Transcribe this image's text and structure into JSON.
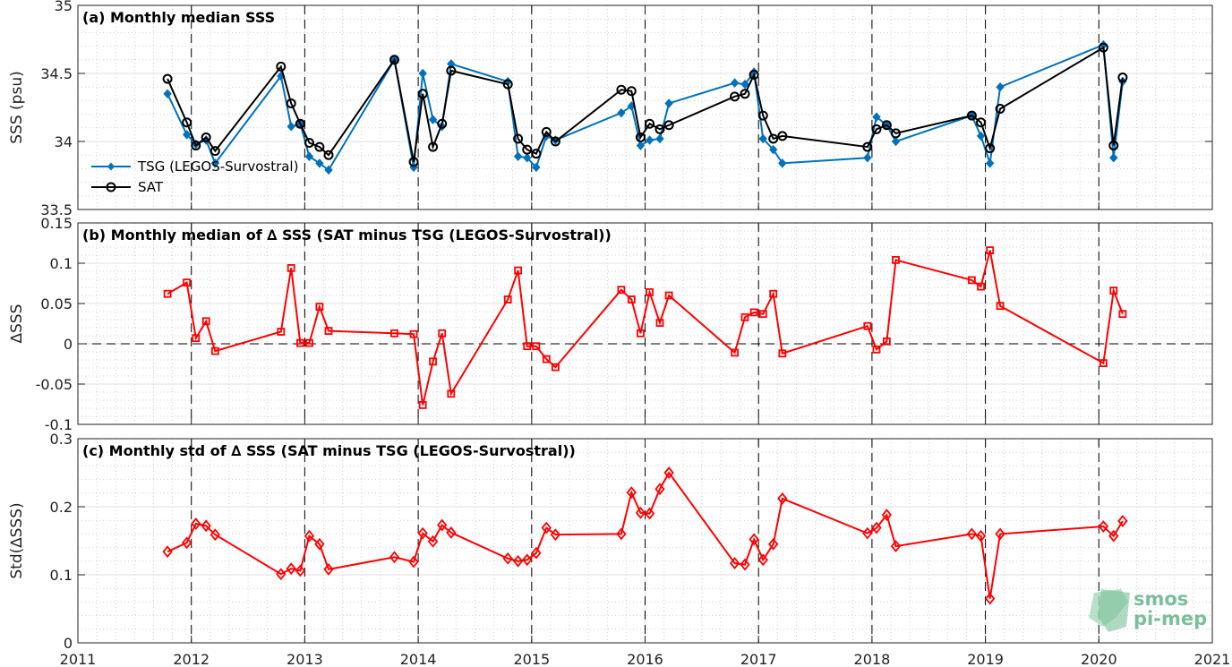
{
  "chart_data": [
    {
      "type": "line",
      "title": "(a) Monthly median SSS",
      "ylabel": "SSS (psu)",
      "ylim": [
        33.5,
        35
      ],
      "yticks": [
        "33.5",
        "34",
        "34.5",
        "35"
      ],
      "xlim": [
        2011,
        2021
      ],
      "xticks": [
        "2011",
        "2012",
        "2013",
        "2014",
        "2015",
        "2016",
        "2017",
        "2018",
        "2019",
        "2020",
        "2021"
      ],
      "grid": true,
      "legend_position": "bottom-left",
      "series": [
        {
          "name": "TSG (LEGOS-Survostral)",
          "color": "#0072bd",
          "marker": "diamond",
          "points": [
            [
              2011.79,
              34.35
            ],
            [
              2011.96,
              34.05
            ],
            [
              2012.04,
              33.98
            ],
            [
              2012.13,
              34.01
            ],
            [
              2012.21,
              33.84
            ],
            [
              2012.79,
              34.48
            ],
            [
              2012.88,
              34.11
            ],
            [
              2012.96,
              34.13
            ],
            [
              2013.04,
              33.89
            ],
            [
              2013.13,
              33.84
            ],
            [
              2013.21,
              33.79
            ],
            [
              2013.79,
              34.6
            ],
            [
              2013.96,
              33.81
            ],
            [
              2014.04,
              34.5
            ],
            [
              2014.13,
              34.16
            ],
            [
              2014.21,
              34.11
            ],
            [
              2014.29,
              34.57
            ],
            [
              2014.79,
              34.44
            ],
            [
              2014.88,
              33.89
            ],
            [
              2014.96,
              33.88
            ],
            [
              2015.04,
              33.81
            ],
            [
              2015.13,
              34.04
            ],
            [
              2015.21,
              34.01
            ],
            [
              2015.79,
              34.21
            ],
            [
              2015.88,
              34.26
            ],
            [
              2015.96,
              33.97
            ],
            [
              2016.04,
              34.01
            ],
            [
              2016.13,
              34.02
            ],
            [
              2016.21,
              34.28
            ],
            [
              2016.79,
              34.43
            ],
            [
              2016.88,
              34.42
            ],
            [
              2016.96,
              34.51
            ],
            [
              2017.04,
              34.02
            ],
            [
              2017.13,
              33.94
            ],
            [
              2017.21,
              33.84
            ],
            [
              2017.96,
              33.88
            ],
            [
              2018.04,
              34.18
            ],
            [
              2018.13,
              34.12
            ],
            [
              2018.21,
              34.0
            ],
            [
              2018.88,
              34.19
            ],
            [
              2018.96,
              34.04
            ],
            [
              2019.04,
              33.84
            ],
            [
              2019.13,
              34.4
            ],
            [
              2020.04,
              34.71
            ],
            [
              2020.13,
              33.88
            ],
            [
              2020.21,
              34.44
            ]
          ]
        },
        {
          "name": "SAT",
          "color": "#000000",
          "marker": "circle",
          "points": [
            [
              2011.79,
              34.46
            ],
            [
              2011.96,
              34.14
            ],
            [
              2012.04,
              33.97
            ],
            [
              2012.13,
              34.03
            ],
            [
              2012.21,
              33.93
            ],
            [
              2012.79,
              34.55
            ],
            [
              2012.88,
              34.28
            ],
            [
              2012.96,
              34.13
            ],
            [
              2013.04,
              33.99
            ],
            [
              2013.13,
              33.96
            ],
            [
              2013.21,
              33.9
            ],
            [
              2013.79,
              34.6
            ],
            [
              2013.96,
              33.85
            ],
            [
              2014.04,
              34.35
            ],
            [
              2014.13,
              33.96
            ],
            [
              2014.21,
              34.13
            ],
            [
              2014.29,
              34.52
            ],
            [
              2014.79,
              34.42
            ],
            [
              2014.88,
              34.02
            ],
            [
              2014.96,
              33.94
            ],
            [
              2015.04,
              33.91
            ],
            [
              2015.13,
              34.07
            ],
            [
              2015.21,
              34.0
            ],
            [
              2015.79,
              34.38
            ],
            [
              2015.88,
              34.37
            ],
            [
              2015.96,
              34.03
            ],
            [
              2016.04,
              34.13
            ],
            [
              2016.13,
              34.09
            ],
            [
              2016.21,
              34.12
            ],
            [
              2016.79,
              34.33
            ],
            [
              2016.88,
              34.35
            ],
            [
              2016.96,
              34.49
            ],
            [
              2017.04,
              34.19
            ],
            [
              2017.13,
              34.02
            ],
            [
              2017.21,
              34.04
            ],
            [
              2017.96,
              33.96
            ],
            [
              2018.04,
              34.09
            ],
            [
              2018.13,
              34.12
            ],
            [
              2018.21,
              34.06
            ],
            [
              2018.88,
              34.19
            ],
            [
              2018.96,
              34.14
            ],
            [
              2019.04,
              33.95
            ],
            [
              2019.13,
              34.24
            ],
            [
              2020.04,
              34.69
            ],
            [
              2020.13,
              33.97
            ],
            [
              2020.21,
              34.47
            ]
          ]
        }
      ]
    },
    {
      "type": "line",
      "title": "(b) Monthly median of ∆ SSS (SAT minus TSG (LEGOS-Survostral))",
      "ylabel": "∆SSS",
      "ylim": [
        -0.1,
        0.15
      ],
      "yticks": [
        "-0.1",
        "-0.05",
        "0",
        "0.05",
        "0.1",
        "0.15"
      ],
      "xlim": [
        2011,
        2021
      ],
      "xticks": [
        "2011",
        "2012",
        "2013",
        "2014",
        "2015",
        "2016",
        "2017",
        "2018",
        "2019",
        "2020",
        "2021"
      ],
      "grid": true,
      "series": [
        {
          "color": "#ff0000",
          "marker": "square",
          "points": [
            [
              2011.79,
              0.062
            ],
            [
              2011.96,
              0.076
            ],
            [
              2012.04,
              0.007
            ],
            [
              2012.13,
              0.028
            ],
            [
              2012.21,
              -0.009
            ],
            [
              2012.79,
              0.015
            ],
            [
              2012.88,
              0.094
            ],
            [
              2012.96,
              0.001
            ],
            [
              2013.04,
              0.001
            ],
            [
              2013.13,
              0.046
            ],
            [
              2013.21,
              0.016
            ],
            [
              2013.79,
              0.013
            ],
            [
              2013.96,
              0.012
            ],
            [
              2014.04,
              -0.076
            ],
            [
              2014.13,
              -0.022
            ],
            [
              2014.21,
              0.013
            ],
            [
              2014.29,
              -0.062
            ],
            [
              2014.79,
              0.055
            ],
            [
              2014.88,
              0.091
            ],
            [
              2014.96,
              -0.003
            ],
            [
              2015.04,
              -0.003
            ],
            [
              2015.13,
              -0.019
            ],
            [
              2015.21,
              -0.029
            ],
            [
              2015.79,
              0.067
            ],
            [
              2015.88,
              0.055
            ],
            [
              2015.96,
              0.013
            ],
            [
              2016.04,
              0.064
            ],
            [
              2016.13,
              0.026
            ],
            [
              2016.21,
              0.06
            ],
            [
              2016.79,
              -0.011
            ],
            [
              2016.88,
              0.033
            ],
            [
              2016.96,
              0.039
            ],
            [
              2017.04,
              0.037
            ],
            [
              2017.13,
              0.062
            ],
            [
              2017.21,
              -0.012
            ],
            [
              2017.96,
              0.022
            ],
            [
              2018.04,
              -0.007
            ],
            [
              2018.13,
              0.003
            ],
            [
              2018.21,
              0.104
            ],
            [
              2018.88,
              0.079
            ],
            [
              2018.96,
              0.071
            ],
            [
              2019.04,
              0.116
            ],
            [
              2019.13,
              0.047
            ],
            [
              2020.04,
              -0.024
            ],
            [
              2020.13,
              0.066
            ],
            [
              2020.21,
              0.037
            ]
          ]
        }
      ]
    },
    {
      "type": "line",
      "title": "(c) Monthly std of ∆ SSS (SAT minus TSG (LEGOS-Survostral))",
      "ylabel": "Std(∆SSS)",
      "ylim": [
        0,
        0.3
      ],
      "yticks": [
        "0",
        "0.1",
        "0.2",
        "0.3"
      ],
      "xlim": [
        2011,
        2021
      ],
      "xticks": [
        "2011",
        "2012",
        "2013",
        "2014",
        "2015",
        "2016",
        "2017",
        "2018",
        "2019",
        "2020",
        "2021"
      ],
      "grid": true,
      "series": [
        {
          "color": "#ff0000",
          "marker": "diamond-open",
          "points": [
            [
              2011.79,
              0.134
            ],
            [
              2011.96,
              0.147
            ],
            [
              2012.04,
              0.175
            ],
            [
              2012.13,
              0.172
            ],
            [
              2012.21,
              0.159
            ],
            [
              2012.79,
              0.101
            ],
            [
              2012.88,
              0.109
            ],
            [
              2012.96,
              0.106
            ],
            [
              2013.04,
              0.157
            ],
            [
              2013.13,
              0.145
            ],
            [
              2013.21,
              0.108
            ],
            [
              2013.79,
              0.126
            ],
            [
              2013.96,
              0.119
            ],
            [
              2014.04,
              0.161
            ],
            [
              2014.13,
              0.149
            ],
            [
              2014.21,
              0.173
            ],
            [
              2014.29,
              0.162
            ],
            [
              2014.79,
              0.124
            ],
            [
              2014.88,
              0.12
            ],
            [
              2014.96,
              0.122
            ],
            [
              2015.04,
              0.132
            ],
            [
              2015.13,
              0.169
            ],
            [
              2015.21,
              0.159
            ],
            [
              2015.79,
              0.16
            ],
            [
              2015.88,
              0.221
            ],
            [
              2015.96,
              0.191
            ],
            [
              2016.04,
              0.19
            ],
            [
              2016.13,
              0.226
            ],
            [
              2016.21,
              0.25
            ],
            [
              2016.79,
              0.117
            ],
            [
              2016.88,
              0.115
            ],
            [
              2016.96,
              0.152
            ],
            [
              2017.04,
              0.122
            ],
            [
              2017.13,
              0.145
            ],
            [
              2017.21,
              0.212
            ],
            [
              2017.96,
              0.161
            ],
            [
              2018.04,
              0.169
            ],
            [
              2018.13,
              0.188
            ],
            [
              2018.21,
              0.142
            ],
            [
              2018.88,
              0.16
            ],
            [
              2018.96,
              0.157
            ],
            [
              2019.04,
              0.065
            ],
            [
              2019.13,
              0.16
            ],
            [
              2020.04,
              0.171
            ],
            [
              2020.13,
              0.157
            ],
            [
              2020.21,
              0.179
            ]
          ]
        }
      ]
    }
  ],
  "logo": {
    "line1": "smos",
    "line2": "pi-mep"
  }
}
